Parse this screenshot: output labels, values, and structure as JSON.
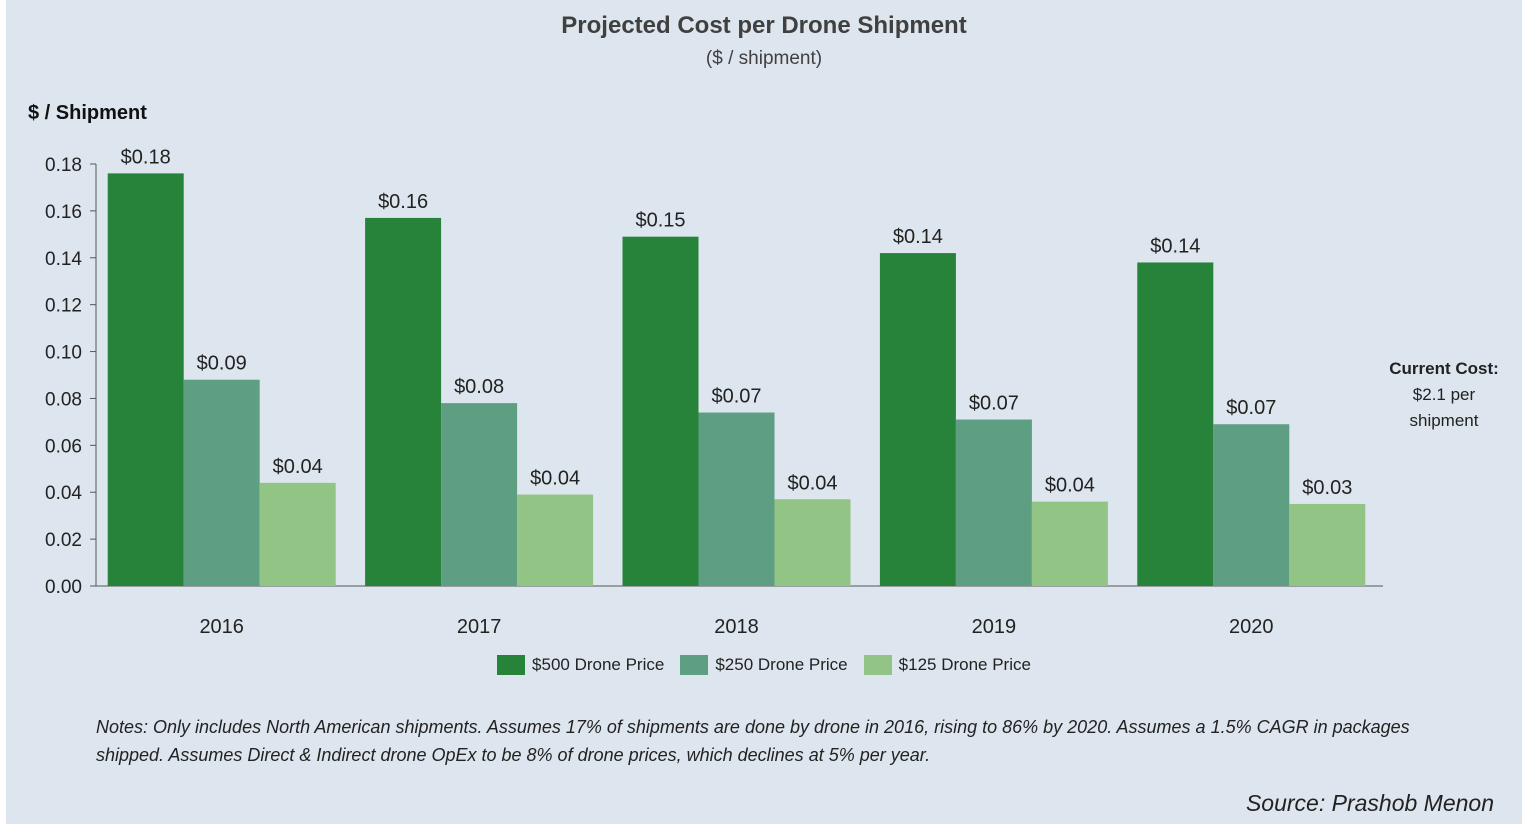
{
  "chart_data": {
    "type": "bar",
    "title": "Projected Cost per Drone Shipment",
    "subtitle": "($ / shipment)",
    "ylabel": "$ / Shipment",
    "xlabel": "",
    "ylim": [
      0,
      0.18
    ],
    "yticks": [
      "0.00",
      "0.02",
      "0.04",
      "0.06",
      "0.08",
      "0.10",
      "0.12",
      "0.14",
      "0.16",
      "0.18"
    ],
    "categories": [
      "2016",
      "2017",
      "2018",
      "2019",
      "2020"
    ],
    "series": [
      {
        "name": "$500 Drone Price",
        "color": "#27823a",
        "values": [
          0.176,
          0.157,
          0.149,
          0.142,
          0.138
        ],
        "labels": [
          "$0.18",
          "$0.16",
          "$0.15",
          "$0.14",
          "$0.14"
        ]
      },
      {
        "name": "$250 Drone Price",
        "color": "#5e9f84",
        "values": [
          0.088,
          0.078,
          0.074,
          0.071,
          0.069
        ],
        "labels": [
          "$0.09",
          "$0.08",
          "$0.07",
          "$0.07",
          "$0.07"
        ]
      },
      {
        "name": "$125 Drone Price",
        "color": "#92c486",
        "values": [
          0.044,
          0.039,
          0.037,
          0.036,
          0.035
        ],
        "labels": [
          "$0.04",
          "$0.04",
          "$0.04",
          "$0.04",
          "$0.03"
        ]
      }
    ],
    "grid": false,
    "legend_position": "bottom"
  },
  "side_note": {
    "heading": "Current Cost:",
    "line1": "$2.1 per",
    "line2": "shipment"
  },
  "notes": "Notes: Only includes North American shipments. Assumes 17% of shipments are done by drone in 2016, rising to 86% by 2020. Assumes a 1.5% CAGR in packages shipped. Assumes Direct & Indirect drone OpEx to be 8% of drone prices, which declines at 5% per year.",
  "source": "Source: Prashob Menon"
}
